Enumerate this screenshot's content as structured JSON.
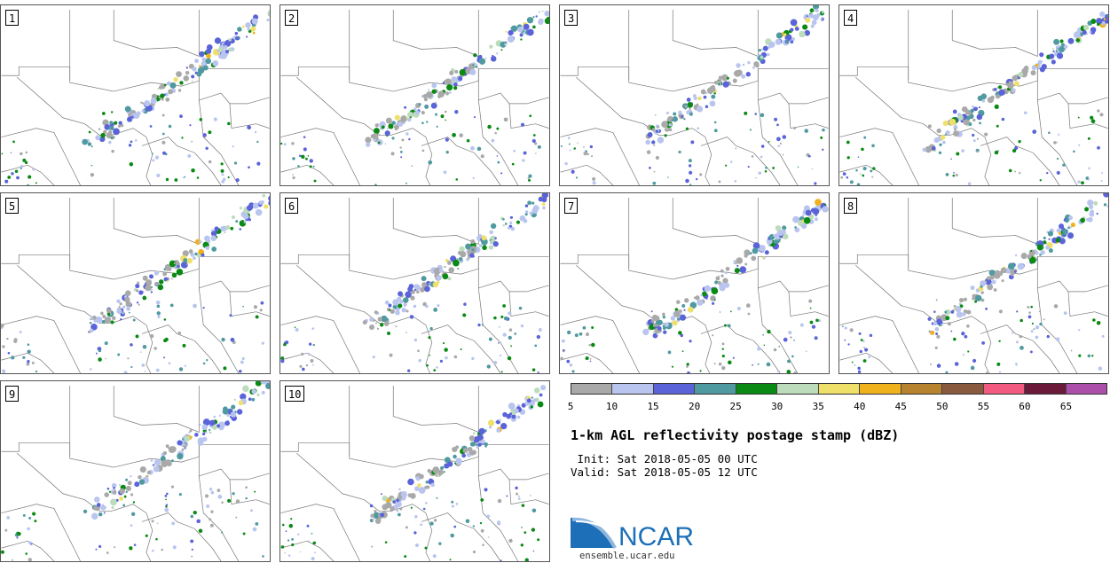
{
  "panels": [
    {
      "label": "1"
    },
    {
      "label": "2"
    },
    {
      "label": "3"
    },
    {
      "label": "4"
    },
    {
      "label": "5"
    },
    {
      "label": "6"
    },
    {
      "label": "7"
    },
    {
      "label": "8"
    },
    {
      "label": "9"
    },
    {
      "label": "10"
    }
  ],
  "colorbar": {
    "colors": [
      "#a9a9a9",
      "#b9c5ee",
      "#5a64d8",
      "#4f9aa0",
      "#0a8a14",
      "#bcdcbc",
      "#efe06a",
      "#efb21d",
      "#b8832e",
      "#8a5a3f",
      "#f25a80",
      "#6b1a3a",
      "#ab4faa"
    ],
    "ticks": [
      "5",
      "10",
      "15",
      "20",
      "25",
      "30",
      "35",
      "40",
      "45",
      "50",
      "55",
      "60",
      "65"
    ]
  },
  "title": "1-km AGL reflectivity postage stamp (dBZ)",
  "init_line": " Init: Sat 2018-05-05 00 UTC",
  "valid_line": "Valid: Sat 2018-05-05 12 UTC",
  "logo_text": "NCAR",
  "site": "ensemble.ucar.edu"
}
